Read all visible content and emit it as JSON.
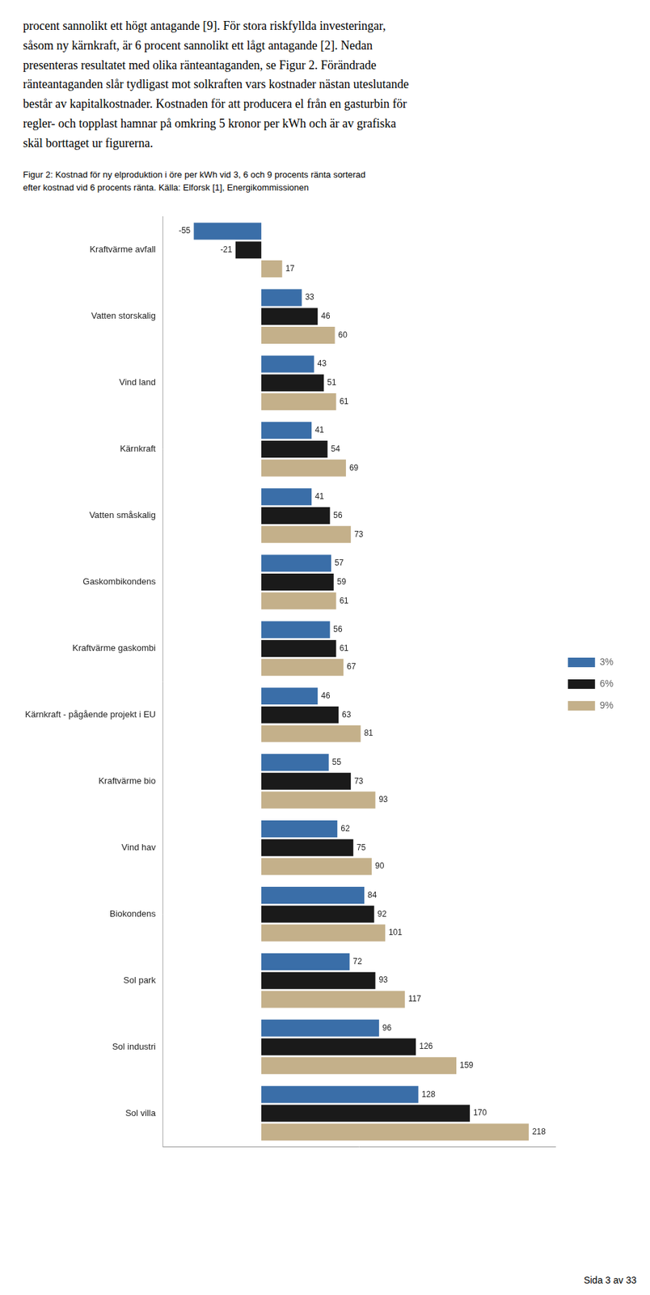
{
  "chart_data": {
    "type": "bar",
    "orientation": "horizontal",
    "title": "Figur 2: Kostnad för ny elproduktion i öre per kWh vid 3, 6 och 9 procents ränta sorterad\nefter kostnad vid 6 procents ränta. Källa: Elforsk [1], Energikommissionen",
    "annotations": [
      "procent sannolikt ett högt antagande [9]. För stora riskfyllda investeringar,\nsåsom ny kärnkraft, är 6 procent sannolikt ett lågt antagande [2]. Nedan\npresenteras resultatet med olika ränteantaganden, se Figur 2. Förändrade\nränteantaganden slår tydligast mot solkraften vars kostnader nästan uteslutande\nbestår av kapitalkostnader. Kostnaden för att producera el från en gasturbin för\nregler- och topplast hamnar på omkring 5 kronor per kWh och är av grafiska\nskäl borttaget ur figurerna.",
      "Sida 3 av 33"
    ],
    "categories": [
      "Kraftvärme avfall",
      "Vatten storskalig",
      "Vind land",
      "Kärnkraft",
      "Vatten småskalig",
      "Gaskombikondens",
      "Kraftvärme gaskombi",
      "Kärnkraft - pågående projekt i EU",
      "Kraftvärme bio",
      "Vind hav",
      "Biokondens",
      "Sol park",
      "Sol industri",
      "Sol villa"
    ],
    "series": [
      {
        "name": "3%",
        "color": "#3A6EA8",
        "values": [
          -55,
          33,
          43,
          41,
          41,
          57,
          56,
          46,
          55,
          62,
          84,
          72,
          96,
          128
        ]
      },
      {
        "name": "6%",
        "color": "#1A1A1A",
        "values": [
          -21,
          46,
          51,
          54,
          56,
          59,
          61,
          63,
          73,
          75,
          92,
          93,
          126,
          170
        ]
      },
      {
        "name": "9%",
        "color": "#C4B08A",
        "values": [
          17,
          60,
          61,
          69,
          73,
          61,
          67,
          81,
          93,
          90,
          101,
          117,
          159,
          218
        ]
      }
    ],
    "xlim": [
      -80,
      240
    ],
    "xticks": [],
    "grid": false,
    "legend": "right",
    "data_labels": true,
    "tick_labels": "y"
  }
}
